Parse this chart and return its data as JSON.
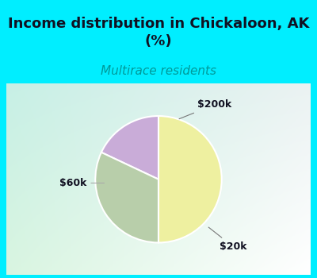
{
  "title": "Income distribution in Chickaloon, AK\n(%)",
  "subtitle": "Multirace residents",
  "slices": [
    {
      "label": "$200k",
      "value": 18,
      "color": "#c9acd8"
    },
    {
      "label": "$20k",
      "value": 32,
      "color": "#b8ceaa"
    },
    {
      "label": "$60k",
      "value": 50,
      "color": "#eef0a0"
    }
  ],
  "startangle": 90,
  "bg_cyan": "#00eeff",
  "title_color": "#111122",
  "subtitle_color": "#009999",
  "label_color": "#111122",
  "title_fontsize": 13,
  "subtitle_fontsize": 11,
  "grad_tl": [
    0.78,
    0.94,
    0.9
  ],
  "grad_tr": [
    0.92,
    0.95,
    0.95
  ],
  "grad_bl": [
    0.85,
    0.96,
    0.88
  ],
  "grad_br": [
    1.0,
    1.0,
    1.0
  ]
}
